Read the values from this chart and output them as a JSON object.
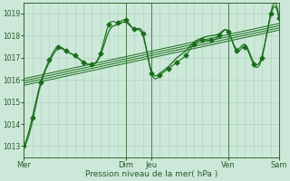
{
  "background_color": "#cce8d8",
  "grid_color": "#aacfba",
  "line_color": "#1a6e1a",
  "axis_color": "#336633",
  "text_color": "#2a5a2a",
  "xlabel_text": "Pression niveau de la mer( hPa )",
  "ylim": [
    1012.5,
    1019.5
  ],
  "yticks": [
    1013,
    1014,
    1015,
    1016,
    1017,
    1018,
    1019
  ],
  "day_labels": [
    "Mer",
    "Dim",
    "Jeu",
    "Ven",
    "Sam"
  ],
  "day_positions": [
    0,
    48,
    60,
    96,
    120
  ],
  "xmax": 120,
  "marker_series_x": [
    0,
    4,
    8,
    12,
    16,
    20,
    24,
    28,
    32,
    36,
    40,
    44,
    48,
    52,
    56,
    60,
    64,
    68,
    72,
    76,
    80,
    84,
    88,
    92,
    96,
    100,
    104,
    108,
    112,
    116,
    120
  ],
  "marker_series_y": [
    1013.0,
    1014.3,
    1015.9,
    1016.9,
    1017.5,
    1017.3,
    1017.1,
    1016.8,
    1016.7,
    1017.2,
    1018.5,
    1018.6,
    1018.7,
    1018.3,
    1018.1,
    1016.3,
    1016.2,
    1016.5,
    1016.8,
    1017.1,
    1017.6,
    1017.8,
    1017.8,
    1018.0,
    1018.2,
    1017.3,
    1017.5,
    1016.7,
    1017.0,
    1019.0,
    1018.8
  ],
  "smooth_series_x": [
    0,
    4,
    8,
    12,
    16,
    20,
    24,
    28,
    32,
    36,
    40,
    44,
    48,
    52,
    56,
    60,
    64,
    68,
    72,
    76,
    80,
    84,
    88,
    92,
    96,
    100,
    104,
    108,
    112,
    116,
    120
  ],
  "smooth_series_y": [
    1013.0,
    1014.1,
    1015.8,
    1016.8,
    1017.4,
    1017.3,
    1017.1,
    1016.8,
    1016.7,
    1017.1,
    1018.2,
    1018.5,
    1018.6,
    1018.3,
    1018.0,
    1016.4,
    1016.3,
    1016.6,
    1017.0,
    1017.3,
    1017.7,
    1017.9,
    1018.0,
    1018.1,
    1018.2,
    1017.4,
    1017.6,
    1016.8,
    1017.1,
    1018.9,
    1018.7
  ],
  "trend_lines": [
    {
      "x": [
        0,
        120
      ],
      "y": [
        1016.05,
        1018.55
      ]
    },
    {
      "x": [
        0,
        120
      ],
      "y": [
        1015.95,
        1018.45
      ]
    },
    {
      "x": [
        0,
        120
      ],
      "y": [
        1015.85,
        1018.35
      ]
    },
    {
      "x": [
        0,
        120
      ],
      "y": [
        1015.75,
        1018.25
      ]
    }
  ]
}
